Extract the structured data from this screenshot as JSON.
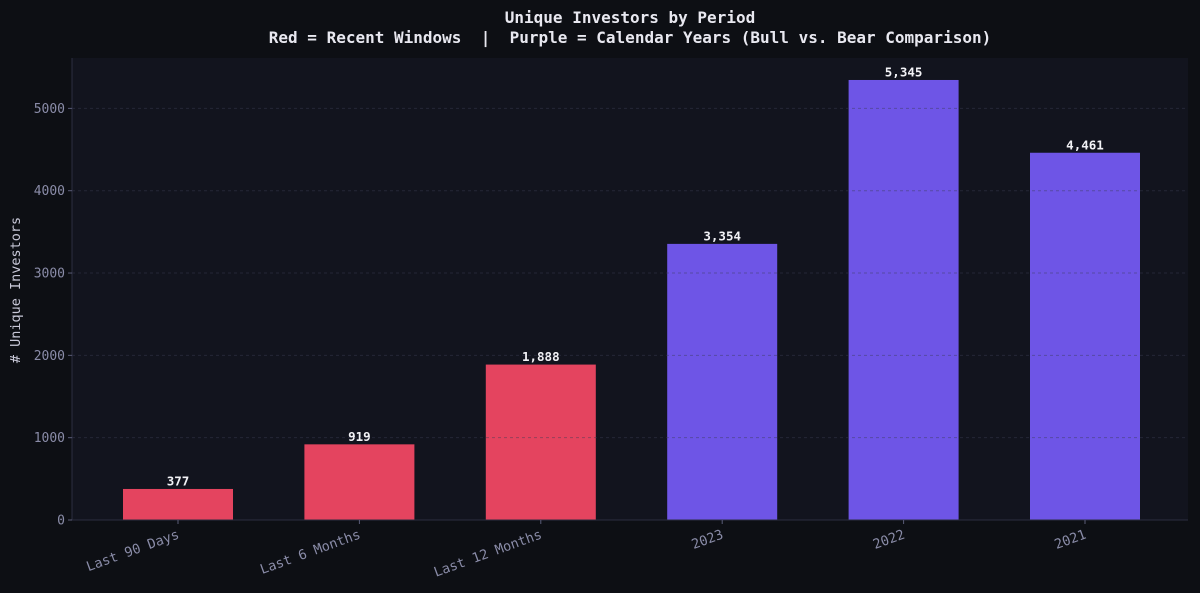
{
  "chart_data": {
    "type": "bar",
    "title": "Unique Investors by Period",
    "subtitle": "Red = Recent Windows  |  Purple = Calendar Years (Bull vs. Bear Comparison)",
    "xlabel": "",
    "ylabel": "# Unique Investors",
    "categories": [
      "Last 90 Days",
      "Last 6 Months",
      "Last 12 Months",
      "2023",
      "2022",
      "2021"
    ],
    "values": [
      377,
      919,
      1888,
      3354,
      5345,
      4461
    ],
    "data_labels": [
      "377",
      "919",
      "1,888",
      "3,354",
      "5,345",
      "4,461"
    ],
    "bar_colors": [
      "#e4445f",
      "#e4445f",
      "#e4445f",
      "#6e55e6",
      "#6e55e6",
      "#6e55e6"
    ],
    "yticks": [
      0,
      1000,
      2000,
      3000,
      4000,
      5000
    ],
    "ylim": [
      0,
      5612
    ],
    "grid": true,
    "grid_style": "dashed-horizontal",
    "colors": {
      "background": "#0d0f14",
      "plot_background": "#12141e",
      "grid": "#2a2c3e",
      "text": "#e8e8f0",
      "tick": "#8a8ca8"
    }
  }
}
